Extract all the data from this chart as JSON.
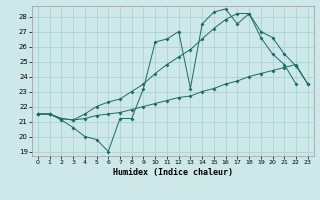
{
  "xlabel": "Humidex (Indice chaleur)",
  "background_color": "#cce8e8",
  "grid_color": "#aacece",
  "line_color": "#1a6b6b",
  "xlim": [
    -0.5,
    23.5
  ],
  "ylim": [
    18.7,
    28.7
  ],
  "yticks": [
    19,
    20,
    21,
    22,
    23,
    24,
    25,
    26,
    27,
    28
  ],
  "xticks": [
    0,
    1,
    2,
    3,
    4,
    5,
    6,
    7,
    8,
    9,
    10,
    11,
    12,
    13,
    14,
    15,
    16,
    17,
    18,
    19,
    20,
    21,
    22,
    23
  ],
  "line1_x": [
    0,
    1,
    2,
    3,
    4,
    5,
    6,
    7,
    8,
    9,
    10,
    11,
    12,
    13,
    14,
    15,
    16,
    17,
    18,
    19,
    20,
    21,
    22
  ],
  "line1_y": [
    21.5,
    21.5,
    21.1,
    20.6,
    20.0,
    19.8,
    19.0,
    21.2,
    21.2,
    23.2,
    26.3,
    26.5,
    27.0,
    23.2,
    27.5,
    28.3,
    28.5,
    27.5,
    28.2,
    26.6,
    25.5,
    24.8,
    23.5
  ],
  "line2_x": [
    0,
    1,
    2,
    3,
    4,
    5,
    6,
    7,
    8,
    9,
    10,
    11,
    12,
    13,
    14,
    15,
    16,
    17,
    18,
    19,
    20,
    21,
    22,
    23
  ],
  "line2_y": [
    21.5,
    21.5,
    21.2,
    21.1,
    21.2,
    21.4,
    21.5,
    21.6,
    21.8,
    22.0,
    22.2,
    22.4,
    22.6,
    22.7,
    23.0,
    23.2,
    23.5,
    23.7,
    24.0,
    24.2,
    24.4,
    24.6,
    24.8,
    23.5
  ],
  "line3_x": [
    0,
    1,
    2,
    3,
    4,
    5,
    6,
    7,
    8,
    9,
    10,
    11,
    12,
    13,
    14,
    15,
    16,
    17,
    18,
    19,
    20,
    21,
    22,
    23
  ],
  "line3_y": [
    21.5,
    21.5,
    21.2,
    21.1,
    21.5,
    22.0,
    22.3,
    22.5,
    23.0,
    23.5,
    24.2,
    24.8,
    25.3,
    25.8,
    26.5,
    27.2,
    27.8,
    28.2,
    28.2,
    27.0,
    26.6,
    25.5,
    24.7,
    23.5
  ]
}
